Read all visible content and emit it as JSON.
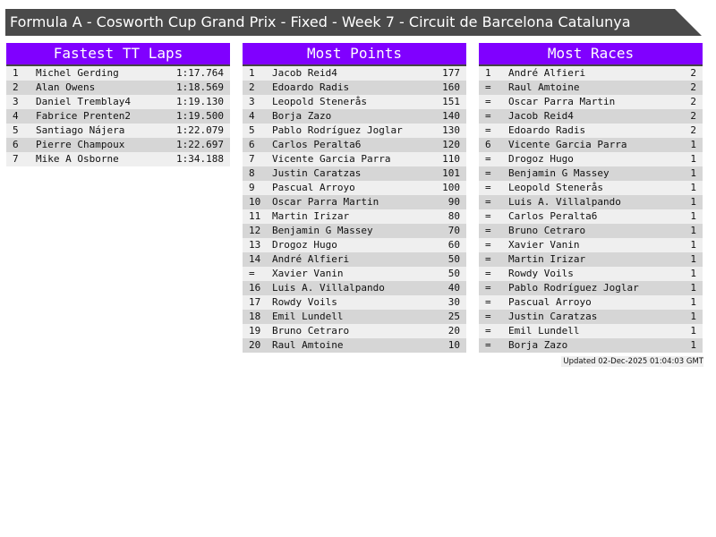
{
  "title": "Formula A - Cosworth Cup Grand Prix - Fixed - Week 7 - Circuit de Barcelona Catalunya",
  "panels": [
    {
      "heading": "Fastest TT Laps",
      "rows": [
        [
          "1",
          "Michel Gerding",
          "1:17.764"
        ],
        [
          "2",
          "Alan Owens",
          "1:18.569"
        ],
        [
          "3",
          "Daniel Tremblay4",
          "1:19.130"
        ],
        [
          "4",
          "Fabrice Prenten2",
          "1:19.500"
        ],
        [
          "5",
          "Santiago Nájera",
          "1:22.079"
        ],
        [
          "6",
          "Pierre Champoux",
          "1:22.697"
        ],
        [
          "7",
          "Mike A Osborne",
          "1:34.188"
        ]
      ]
    },
    {
      "heading": "Most Points",
      "rows": [
        [
          "1",
          "Jacob Reid4",
          "177"
        ],
        [
          "2",
          "Edoardo Radis",
          "160"
        ],
        [
          "3",
          "Leopold Stenerås",
          "151"
        ],
        [
          "4",
          "Borja Zazo",
          "140"
        ],
        [
          "5",
          "Pablo Rodríguez Joglar",
          "130"
        ],
        [
          "6",
          "Carlos Peralta6",
          "120"
        ],
        [
          "7",
          "Vicente Garcia Parra",
          "110"
        ],
        [
          "8",
          "Justin Caratzas",
          "101"
        ],
        [
          "9",
          "Pascual Arroyo",
          "100"
        ],
        [
          "10",
          "Oscar Parra Martin",
          "90"
        ],
        [
          "11",
          "Martin Irizar",
          "80"
        ],
        [
          "12",
          "Benjamin G Massey",
          "70"
        ],
        [
          "13",
          "Drogoz Hugo",
          "60"
        ],
        [
          "14",
          "André Alfieri",
          "50"
        ],
        [
          "=",
          "Xavier Vanin",
          "50"
        ],
        [
          "16",
          "Luis A. Villalpando",
          "40"
        ],
        [
          "17",
          "Rowdy Voils",
          "30"
        ],
        [
          "18",
          "Emil Lundell",
          "25"
        ],
        [
          "19",
          "Bruno Cetraro",
          "20"
        ],
        [
          "20",
          "Raul Amtoine",
          "10"
        ]
      ]
    },
    {
      "heading": "Most Races",
      "rows": [
        [
          "1",
          "André Alfieri",
          "2"
        ],
        [
          "=",
          "Raul Amtoine",
          "2"
        ],
        [
          "=",
          "Oscar Parra Martin",
          "2"
        ],
        [
          "=",
          "Jacob Reid4",
          "2"
        ],
        [
          "=",
          "Edoardo Radis",
          "2"
        ],
        [
          "6",
          "Vicente Garcia Parra",
          "1"
        ],
        [
          "=",
          "Drogoz Hugo",
          "1"
        ],
        [
          "=",
          "Benjamin G Massey",
          "1"
        ],
        [
          "=",
          "Leopold Stenerås",
          "1"
        ],
        [
          "=",
          "Luis A. Villalpando",
          "1"
        ],
        [
          "=",
          "Carlos Peralta6",
          "1"
        ],
        [
          "=",
          "Bruno Cetraro",
          "1"
        ],
        [
          "=",
          "Xavier Vanin",
          "1"
        ],
        [
          "=",
          "Martin Irizar",
          "1"
        ],
        [
          "=",
          "Rowdy Voils",
          "1"
        ],
        [
          "=",
          "Pablo Rodríguez Joglar",
          "1"
        ],
        [
          "=",
          "Pascual Arroyo",
          "1"
        ],
        [
          "=",
          "Justin Caratzas",
          "1"
        ],
        [
          "=",
          "Emil Lundell",
          "1"
        ],
        [
          "=",
          "Borja Zazo",
          "1"
        ]
      ]
    }
  ],
  "updated": "Updated 02-Dec-2025 01:04:03 GMT",
  "colors": {
    "header": "#8000ff",
    "title_bar": "#4a4a4a"
  }
}
